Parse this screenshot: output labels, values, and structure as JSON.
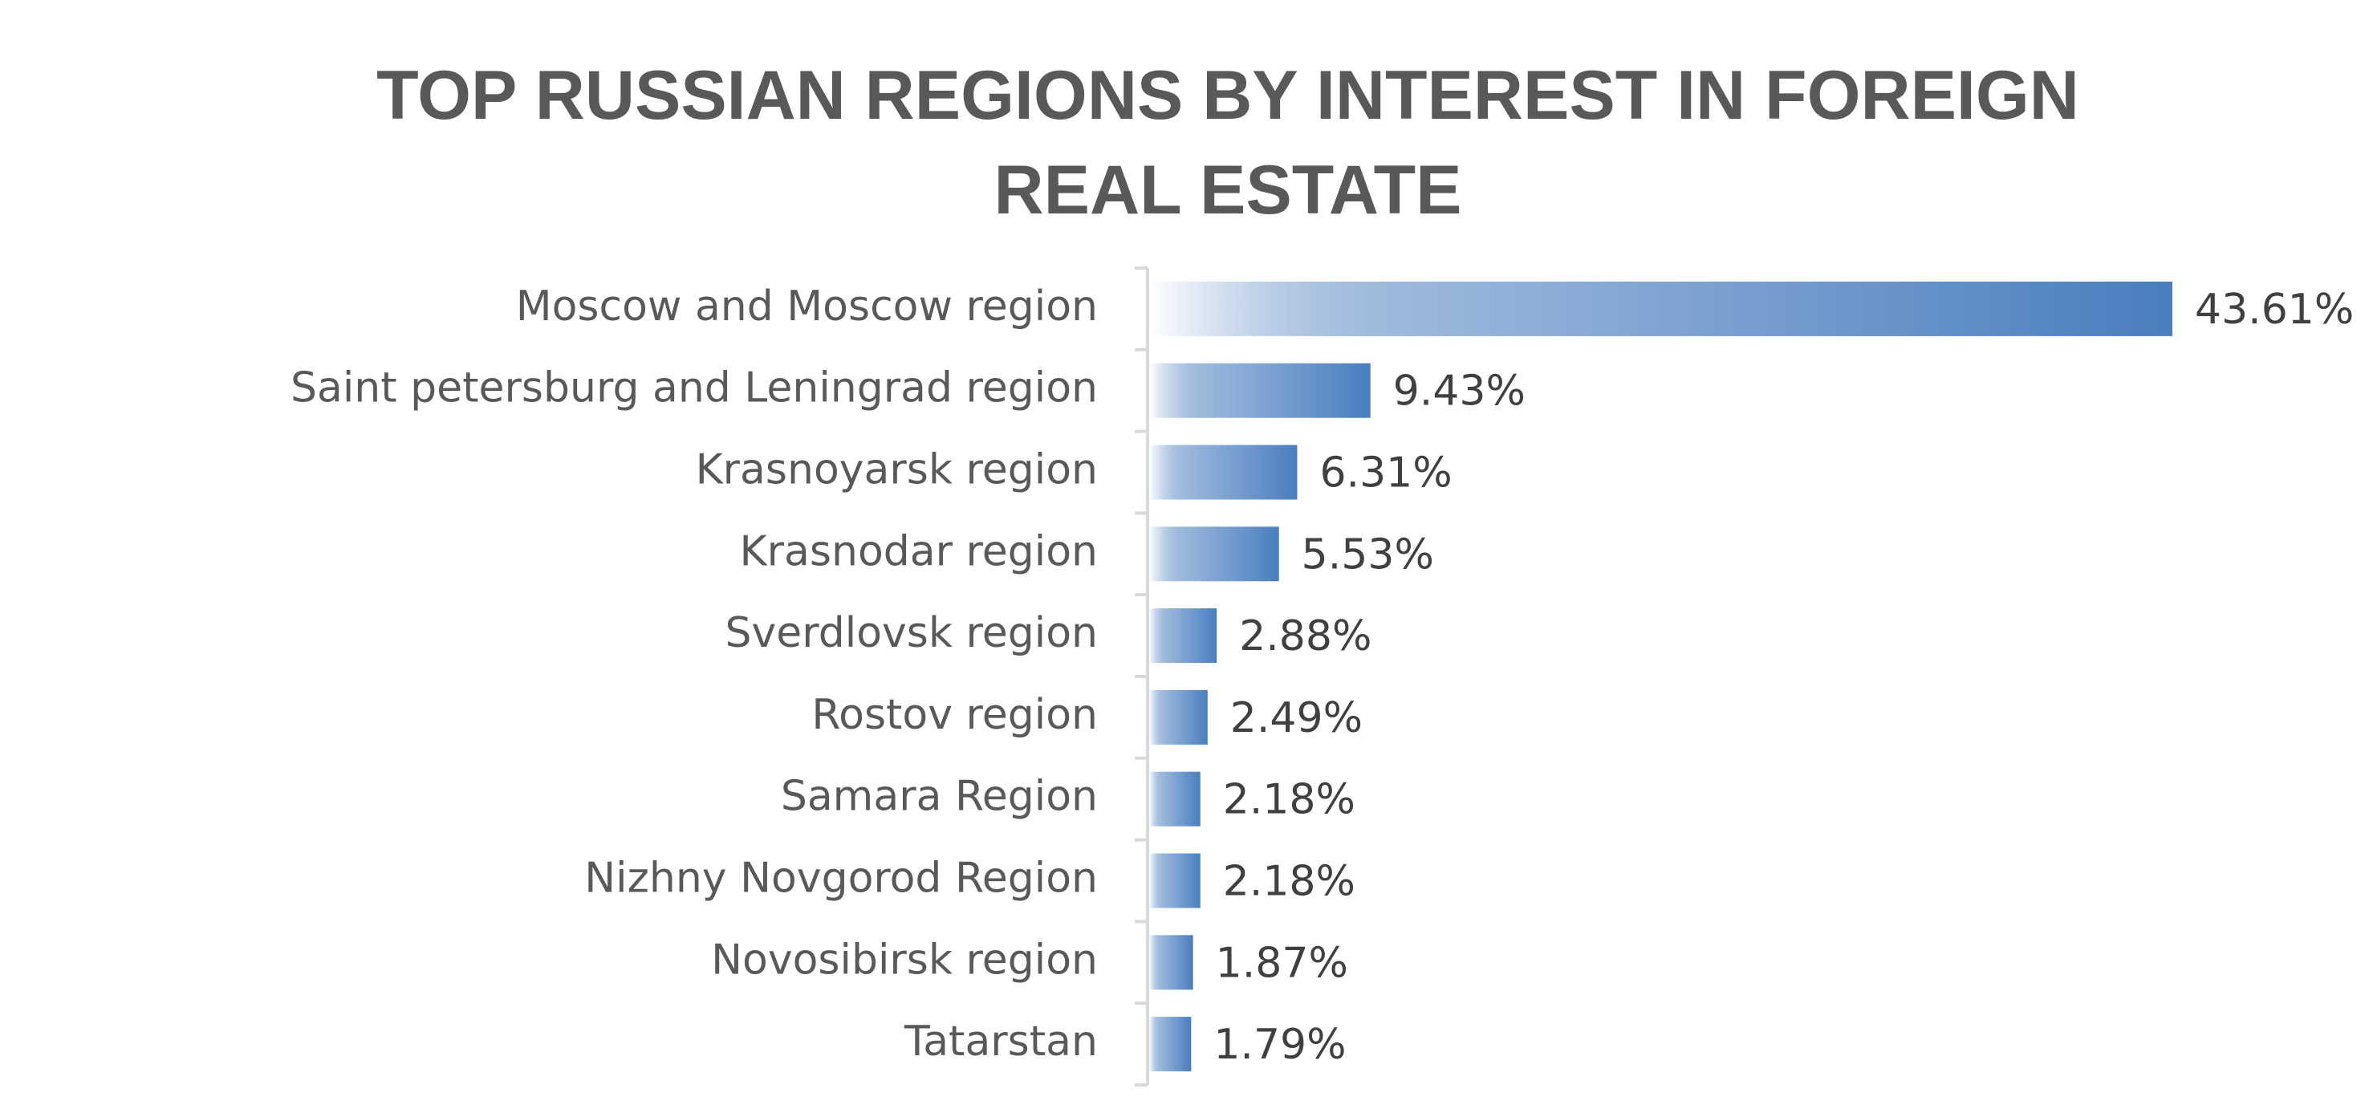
{
  "chart_data": {
    "type": "bar",
    "orientation": "horizontal",
    "title": "TOP RUSSIAN REGIONS BY INTEREST IN FOREIGN REAL ESTATE",
    "categories": [
      "Moscow and Moscow region",
      "Saint petersburg and Leningrad region",
      "Krasnoyarsk region",
      "Krasnodar region",
      "Sverdlovsk region",
      "Rostov region",
      "Samara Region",
      "Nizhny Novgorod Region",
      "Novosibirsk region",
      "Tatarstan"
    ],
    "values": [
      43.61,
      9.43,
      6.31,
      5.53,
      2.88,
      2.49,
      2.18,
      2.18,
      1.87,
      1.79
    ],
    "value_labels": [
      "43.61%",
      "9.43%",
      "6.31%",
      "5.53%",
      "2.88%",
      "2.49%",
      "2.18%",
      "2.18%",
      "1.87%",
      "1.79%"
    ],
    "color": "#4a7ebf"
  }
}
